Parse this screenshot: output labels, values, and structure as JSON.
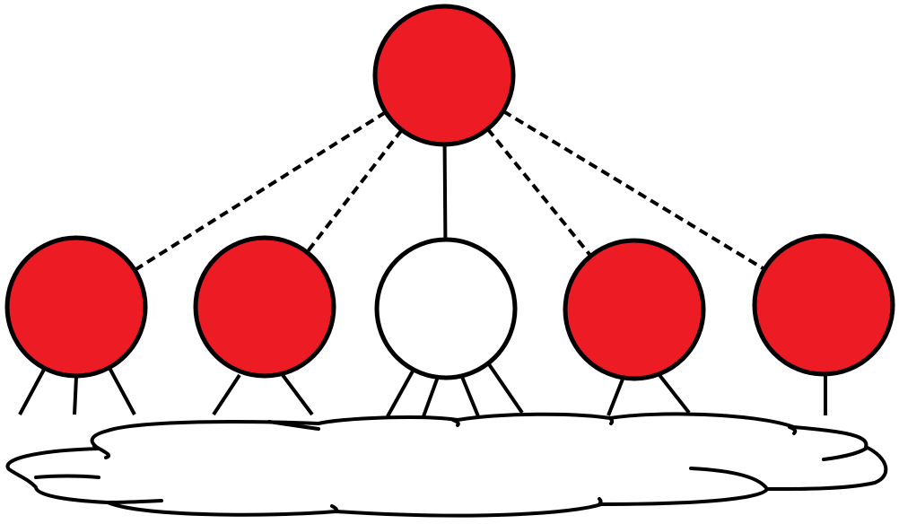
{
  "colors": {
    "filled": "#ed1c24",
    "empty": "#ffffff",
    "stroke": "#000000",
    "background": "#ffffff"
  },
  "nodes": [
    {
      "id": "root",
      "fill": "filled"
    },
    {
      "id": "child-1",
      "fill": "filled"
    },
    {
      "id": "child-2",
      "fill": "filled"
    },
    {
      "id": "child-3",
      "fill": "empty"
    },
    {
      "id": "child-4",
      "fill": "filled"
    },
    {
      "id": "child-5",
      "fill": "filled"
    }
  ],
  "edges": [
    {
      "from": "root",
      "to": "child-1",
      "style": "dashed"
    },
    {
      "from": "root",
      "to": "child-2",
      "style": "dashed"
    },
    {
      "from": "root",
      "to": "child-3",
      "style": "solid"
    },
    {
      "from": "root",
      "to": "child-4",
      "style": "dashed"
    },
    {
      "from": "root",
      "to": "child-5",
      "style": "dashed"
    }
  ],
  "leg_counts": {
    "child-1": 3,
    "child-2": 2,
    "child-3": 4,
    "child-4": 2,
    "child-5": 1
  },
  "cloud": {
    "shape": "cloud"
  }
}
